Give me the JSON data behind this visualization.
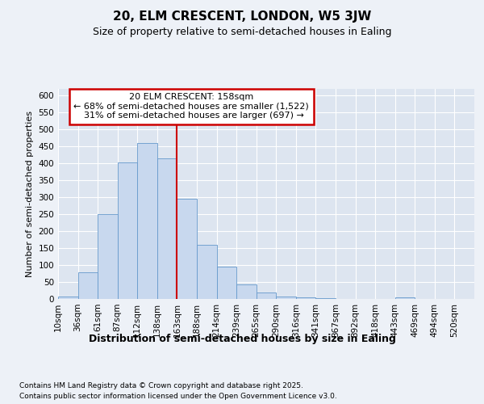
{
  "title": "20, ELM CRESCENT, LONDON, W5 3JW",
  "subtitle": "Size of property relative to semi-detached houses in Ealing",
  "xlabel": "Distribution of semi-detached houses by size in Ealing",
  "ylabel": "Number of semi-detached properties",
  "bar_values": [
    8,
    78,
    250,
    403,
    460,
    415,
    295,
    160,
    95,
    42,
    18,
    6,
    5,
    2,
    0,
    0,
    0,
    5,
    0,
    0
  ],
  "categories": [
    "10sqm",
    "36sqm",
    "61sqm",
    "87sqm",
    "112sqm",
    "138sqm",
    "163sqm",
    "188sqm",
    "214sqm",
    "239sqm",
    "265sqm",
    "290sqm",
    "316sqm",
    "341sqm",
    "367sqm",
    "392sqm",
    "418sqm",
    "443sqm",
    "469sqm",
    "494sqm",
    "520sqm"
  ],
  "bar_color": "#c8d8ee",
  "bar_edge_color": "#6699cc",
  "vline_x": 6,
  "vline_color": "#cc0000",
  "annotation_text": "20 ELM CRESCENT: 158sqm\n← 68% of semi-detached houses are smaller (1,522)\n  31% of semi-detached houses are larger (697) →",
  "annotation_box_color": "#cc0000",
  "ylim": [
    0,
    620
  ],
  "yticks": [
    0,
    50,
    100,
    150,
    200,
    250,
    300,
    350,
    400,
    450,
    500,
    550,
    600
  ],
  "footer_line1": "Contains HM Land Registry data © Crown copyright and database right 2025.",
  "footer_line2": "Contains public sector information licensed under the Open Government Licence v3.0.",
  "bg_color": "#edf1f7",
  "plot_bg_color": "#dde5f0",
  "grid_color": "#ffffff",
  "title_fontsize": 11,
  "subtitle_fontsize": 9,
  "ylabel_fontsize": 8,
  "xlabel_fontsize": 9,
  "tick_fontsize": 7.5,
  "footer_fontsize": 6.5,
  "ann_fontsize": 8
}
